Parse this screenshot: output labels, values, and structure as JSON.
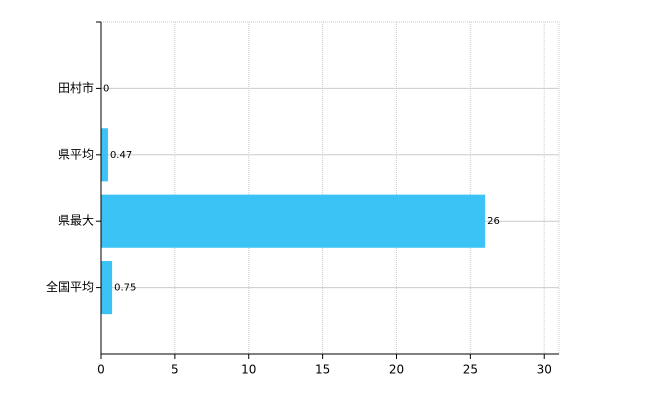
{
  "chart_data": {
    "type": "barh",
    "categories": [
      "田村市",
      "県平均",
      "県最大",
      "全国平均"
    ],
    "values": [
      0,
      0.47,
      26,
      0.75
    ],
    "color": "#3cc3f5",
    "xlim": [
      0,
      31
    ],
    "xticks": [
      0,
      5,
      10,
      15,
      20,
      25,
      30
    ],
    "grid": true
  }
}
